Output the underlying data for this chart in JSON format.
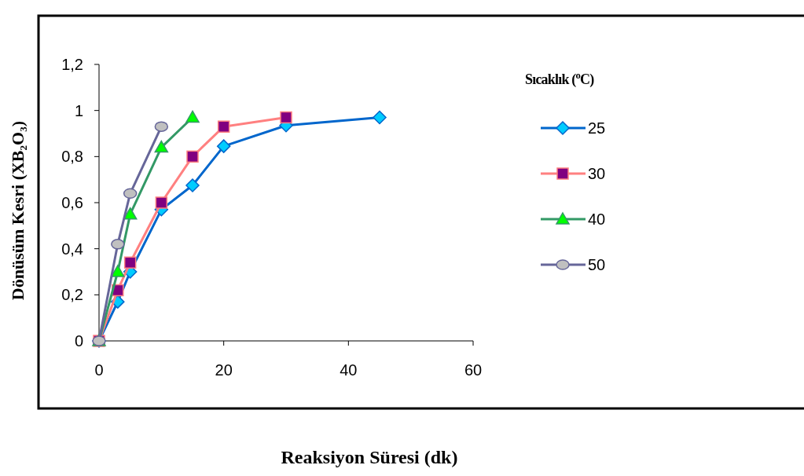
{
  "chart_data": {
    "type": "line",
    "xlabel": "Reaksiyon Süresi (dk)",
    "ylabel": "Dönüsüm Kesri (XB₂O₃)",
    "legend_title": "Sıcaklık ($^{o}$C)",
    "legend": "right",
    "xlim": [
      0,
      60
    ],
    "xticks": [
      0,
      20,
      40,
      60
    ],
    "ylim": [
      0,
      1.2
    ],
    "yticks": [
      {
        "value": 0,
        "label": "0"
      },
      {
        "value": 0.2,
        "label": "0,2"
      },
      {
        "value": 0.4,
        "label": "0,4"
      },
      {
        "value": 0.6,
        "label": "0,6"
      },
      {
        "value": 0.8,
        "label": "0,8"
      },
      {
        "value": 1,
        "label": "1"
      },
      {
        "value": 1.2,
        "label": "1,2"
      }
    ],
    "grid": false,
    "series": [
      {
        "name": "25",
        "color": "#0066cc",
        "marker": "diamond",
        "x": [
          0,
          3,
          5,
          10,
          15,
          20,
          30,
          45
        ],
        "values": [
          0,
          0.17,
          0.3,
          0.57,
          0.675,
          0.845,
          0.935,
          0.97
        ]
      },
      {
        "name": "30",
        "color": "#ff8080",
        "marker": "square",
        "x": [
          0,
          3,
          5,
          10,
          15,
          20,
          30
        ],
        "values": [
          0,
          0.22,
          0.34,
          0.6,
          0.8,
          0.93,
          0.97
        ]
      },
      {
        "name": "40",
        "color": "#339966",
        "marker": "triangle",
        "x": [
          0,
          3,
          5,
          10,
          15
        ],
        "values": [
          0,
          0.3,
          0.55,
          0.84,
          0.97
        ]
      },
      {
        "name": "50",
        "color": "#666699",
        "marker": "circle",
        "x": [
          0,
          3,
          5,
          10
        ],
        "values": [
          0,
          0.42,
          0.64,
          0.93
        ]
      }
    ]
  }
}
